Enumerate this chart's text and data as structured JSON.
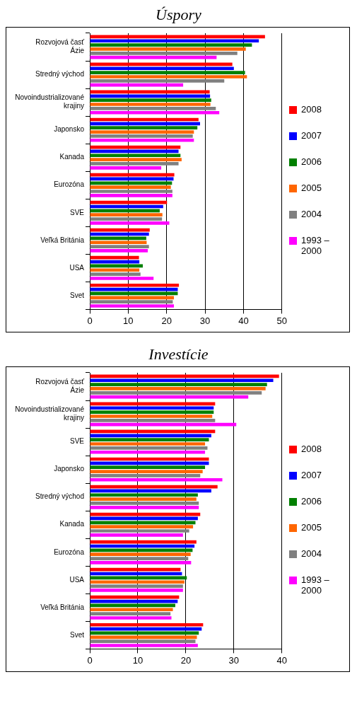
{
  "chart_data": [
    {
      "type": "bar",
      "title": "Úspory",
      "orientation": "horizontal",
      "categories": [
        "Rozvojová časť Ázie",
        "Stredný východ",
        "Novoindustrializované krajiny",
        "Japonsko",
        "Kanada",
        "Eurozóna",
        "SVE",
        "Veľká Británia",
        "USA",
        "Svet"
      ],
      "series": [
        {
          "name": "2008",
          "color": "#ff0000",
          "values": [
            45.6,
            37.1,
            31.2,
            28.3,
            23.6,
            22.0,
            20.1,
            15.6,
            12.8,
            23.2
          ]
        },
        {
          "name": "2007",
          "color": "#0000ff",
          "values": [
            44.0,
            37.5,
            31.3,
            28.7,
            23.1,
            21.8,
            19.1,
            15.4,
            12.9,
            22.9
          ]
        },
        {
          "name": "2006",
          "color": "#008000",
          "values": [
            42.2,
            40.4,
            31.6,
            28.0,
            23.6,
            21.4,
            18.2,
            14.7,
            13.8,
            22.9
          ]
        },
        {
          "name": "2005",
          "color": "#ff6600",
          "values": [
            40.6,
            40.9,
            31.4,
            27.1,
            23.9,
            21.1,
            18.9,
            14.8,
            12.9,
            21.9
          ]
        },
        {
          "name": "2004",
          "color": "#808080",
          "values": [
            38.4,
            35.0,
            32.8,
            26.8,
            23.1,
            21.5,
            18.8,
            15.4,
            13.2,
            21.6
          ]
        },
        {
          "name": "1993 – 2000",
          "color": "#ff00ff",
          "values": [
            33.0,
            24.3,
            33.7,
            27.1,
            18.6,
            21.5,
            20.7,
            15.1,
            16.6,
            21.9
          ]
        }
      ],
      "xlim": [
        0,
        50
      ],
      "xticks": [
        0,
        10,
        20,
        30,
        40,
        50
      ],
      "grid": "x",
      "legend": "right"
    },
    {
      "type": "bar",
      "title": "Investície",
      "orientation": "horizontal",
      "categories": [
        "Rozvojová časť Ázie",
        "Novoindustrializované krajiny",
        "SVE",
        "Japonsko",
        "Stredný východ",
        "Kanada",
        "Eurozóna",
        "USA",
        "Veľká Británia",
        "Svet"
      ],
      "series": [
        {
          "name": "2008",
          "color": "#ff0000",
          "values": [
            39.4,
            26.1,
            26.1,
            24.8,
            26.6,
            23.0,
            22.2,
            18.9,
            18.6,
            23.6
          ]
        },
        {
          "name": "2007",
          "color": "#0000ff",
          "values": [
            38.2,
            25.8,
            25.3,
            24.8,
            25.3,
            22.5,
            21.8,
            19.2,
            18.3,
            23.3
          ]
        },
        {
          "name": "2006",
          "color": "#008000",
          "values": [
            36.9,
            25.8,
            24.8,
            24.0,
            22.5,
            22.0,
            21.4,
            20.2,
            17.8,
            22.7
          ]
        },
        {
          "name": "2005",
          "color": "#ff6600",
          "values": [
            36.6,
            25.5,
            24.0,
            23.5,
            22.2,
            21.5,
            21.0,
            19.7,
            17.3,
            22.3
          ]
        },
        {
          "name": "2004",
          "color": "#808080",
          "values": [
            35.8,
            26.1,
            24.5,
            23.0,
            22.7,
            20.7,
            20.5,
            19.4,
            16.8,
            22.0
          ]
        },
        {
          "name": "1993 – 2000",
          "color": "#ff00ff",
          "values": [
            33.0,
            30.5,
            24.0,
            27.6,
            22.7,
            19.4,
            21.1,
            19.4,
            17.0,
            22.5
          ]
        }
      ],
      "xlim": [
        0,
        40
      ],
      "xticks": [
        0,
        10,
        20,
        30,
        40
      ],
      "grid": "x",
      "legend": "right"
    }
  ]
}
